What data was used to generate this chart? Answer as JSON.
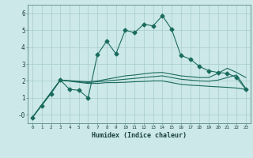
{
  "xlabel": "Humidex (Indice chaleur)",
  "background_color": "#cce8e8",
  "grid_color": "#a8cccc",
  "line_color": "#1a6b5e",
  "xlim": [
    -0.5,
    23.5
  ],
  "ylim": [
    -0.5,
    6.5
  ],
  "line1_x": [
    0,
    1,
    2,
    3,
    4,
    5,
    6,
    7,
    8,
    9,
    10,
    11,
    12,
    13,
    14,
    15,
    16,
    17,
    18,
    19,
    20,
    21,
    22,
    23
  ],
  "line1_y": [
    -0.15,
    0.55,
    1.25,
    2.05,
    1.5,
    1.45,
    1.0,
    3.55,
    4.35,
    3.6,
    5.0,
    4.85,
    5.35,
    5.25,
    5.85,
    5.05,
    3.5,
    3.3,
    2.85,
    2.6,
    2.5,
    2.45,
    2.2,
    1.5
  ],
  "line2_x": [
    0,
    3,
    6,
    7,
    8,
    9,
    10,
    11,
    12,
    13,
    14,
    15,
    16,
    17,
    18,
    19,
    20,
    21,
    22,
    23
  ],
  "line2_y": [
    -0.15,
    2.05,
    1.85,
    1.85,
    1.9,
    1.9,
    1.92,
    1.95,
    1.97,
    2.0,
    2.0,
    1.9,
    1.8,
    1.75,
    1.72,
    1.68,
    1.65,
    1.62,
    1.58,
    1.5
  ],
  "line3_x": [
    0,
    3,
    6,
    7,
    8,
    9,
    10,
    11,
    12,
    13,
    14,
    15,
    16,
    17,
    18,
    19,
    20,
    21,
    22,
    23
  ],
  "line3_y": [
    -0.15,
    2.05,
    1.9,
    1.95,
    2.0,
    2.05,
    2.1,
    2.15,
    2.2,
    2.25,
    2.3,
    2.2,
    2.1,
    2.05,
    2.0,
    1.98,
    2.05,
    2.2,
    2.35,
    1.55
  ],
  "line4_x": [
    0,
    3,
    6,
    7,
    8,
    9,
    10,
    11,
    12,
    13,
    14,
    15,
    16,
    17,
    18,
    19,
    20,
    21,
    22,
    23
  ],
  "line4_y": [
    -0.15,
    2.05,
    1.95,
    2.0,
    2.1,
    2.2,
    2.3,
    2.35,
    2.42,
    2.48,
    2.5,
    2.4,
    2.3,
    2.25,
    2.2,
    2.2,
    2.45,
    2.75,
    2.5,
    2.2
  ]
}
